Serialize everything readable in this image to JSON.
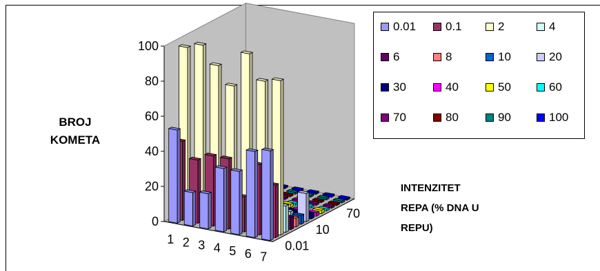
{
  "chart_data": {
    "type": "bar",
    "subtype": "3d-bar",
    "ylabel": "BROJ\nKOMETA",
    "xlabel": "INTENZITET\nREPA (% DNA U\nREPU)",
    "ylim": [
      0,
      100
    ],
    "yticks": [
      "0",
      "20",
      "40",
      "60",
      "80",
      "100"
    ],
    "categories": [
      "1",
      "2",
      "3",
      "4",
      "5",
      "6",
      "7"
    ],
    "depth_tick_labels": [
      "0.01",
      "10",
      "70"
    ],
    "series": [
      {
        "name": "0.01",
        "color": "#9999ff",
        "values": [
          53,
          19,
          20,
          36,
          36,
          49,
          51
        ]
      },
      {
        "name": "0.1",
        "color": "#993366",
        "values": [
          45,
          36,
          40,
          40,
          20,
          40,
          30
        ]
      },
      {
        "name": "2",
        "color": "#ffffcc",
        "values": [
          97,
          100,
          90,
          80,
          100,
          86,
          88
        ]
      },
      {
        "name": "4",
        "color": "#ccffff",
        "values": [
          18,
          12,
          14,
          12,
          17,
          16,
          15
        ]
      },
      {
        "name": "6",
        "color": "#660066",
        "values": [
          9,
          8,
          7,
          9,
          8,
          9,
          7
        ]
      },
      {
        "name": "8",
        "color": "#ff8080",
        "values": [
          6,
          5,
          6,
          5,
          7,
          6,
          5
        ]
      },
      {
        "name": "10",
        "color": "#0066cc",
        "values": [
          5,
          5,
          5,
          4,
          5,
          6,
          5
        ]
      },
      {
        "name": "20",
        "color": "#ccccff",
        "values": [
          4,
          3,
          4,
          3,
          4,
          4,
          16
        ]
      },
      {
        "name": "30",
        "color": "#000080",
        "values": [
          3,
          3,
          3,
          3,
          3,
          3,
          3
        ]
      },
      {
        "name": "40",
        "color": "#ff00ff",
        "values": [
          2,
          2,
          2,
          2,
          2,
          2,
          2
        ]
      },
      {
        "name": "50",
        "color": "#ffff00",
        "values": [
          2,
          2,
          2,
          2,
          2,
          2,
          2
        ]
      },
      {
        "name": "60",
        "color": "#00ffff",
        "values": [
          1,
          1,
          1,
          1,
          1,
          1,
          1
        ]
      },
      {
        "name": "70",
        "color": "#800080",
        "values": [
          1,
          1,
          1,
          1,
          1,
          1,
          1
        ]
      },
      {
        "name": "80",
        "color": "#800000",
        "values": [
          1,
          1,
          1,
          1,
          1,
          1,
          1
        ]
      },
      {
        "name": "90",
        "color": "#008080",
        "values": [
          1,
          1,
          1,
          1,
          1,
          1,
          1
        ]
      },
      {
        "name": "100",
        "color": "#0000ff",
        "values": [
          1,
          1,
          1,
          1,
          1,
          1,
          1
        ]
      }
    ],
    "legend_position": "top-right",
    "grid": false
  }
}
